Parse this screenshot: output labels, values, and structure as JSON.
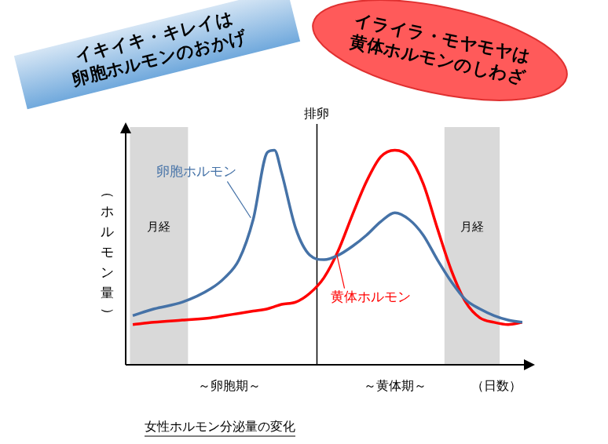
{
  "chart_data": {
    "type": "line",
    "title": "女性ホルモン分泌量の変化",
    "banners": [
      {
        "lines": [
          "イキイキ・キレイは",
          "卵胞ホルモンのおかげ"
        ],
        "color": "#6fa8dc"
      },
      {
        "lines": [
          "イライラ・モヤモヤは",
          "黄体ホルモンのしわざ"
        ],
        "color": "#ff5a5a"
      }
    ],
    "x_label": "（日数）",
    "y_label": "（ホルモン量）",
    "x": [
      0.5,
      2,
      4,
      6,
      7,
      8,
      9,
      10,
      10.5,
      11,
      12,
      13,
      14,
      15,
      16,
      17,
      18,
      19,
      20,
      21,
      22,
      23,
      24,
      25,
      26,
      27,
      28
    ],
    "series": [
      {
        "name": "卵胞ホルモン",
        "color": "#4572a7",
        "values": [
          2.2,
          2.5,
          2.8,
          3.4,
          3.9,
          4.7,
          6.5,
          9.5,
          9.6,
          8.6,
          6.1,
          4.9,
          4.7,
          4.9,
          5.3,
          5.8,
          6.4,
          6.8,
          6.5,
          5.8,
          4.7,
          3.7,
          2.9,
          2.5,
          2.2,
          2.0,
          1.9
        ]
      },
      {
        "name": "黄体ホルモン",
        "color": "#ff0000",
        "values": [
          1.8,
          1.9,
          2.0,
          2.1,
          2.2,
          2.3,
          2.4,
          2.5,
          2.6,
          2.7,
          2.8,
          3.2,
          3.9,
          5.1,
          6.7,
          8.2,
          9.3,
          9.6,
          9.3,
          8.1,
          6.1,
          4.2,
          2.8,
          2.1,
          1.9,
          1.8,
          1.9
        ]
      }
    ],
    "bands": [
      {
        "label": "月経",
        "from": 0.3,
        "to": 4.4
      },
      {
        "label": "月経",
        "from": 22.5,
        "to": 26.4
      }
    ],
    "vlines": [
      {
        "label": "排卵",
        "x": 13.5
      }
    ],
    "phases": [
      {
        "label": "～卵胞期～",
        "x": 7.3
      },
      {
        "label": "～黄体期～",
        "x": 19
      }
    ],
    "xlim": [
      0,
      28
    ],
    "ylim": [
      0,
      10
    ],
    "grid": false,
    "tick_labels": false
  }
}
